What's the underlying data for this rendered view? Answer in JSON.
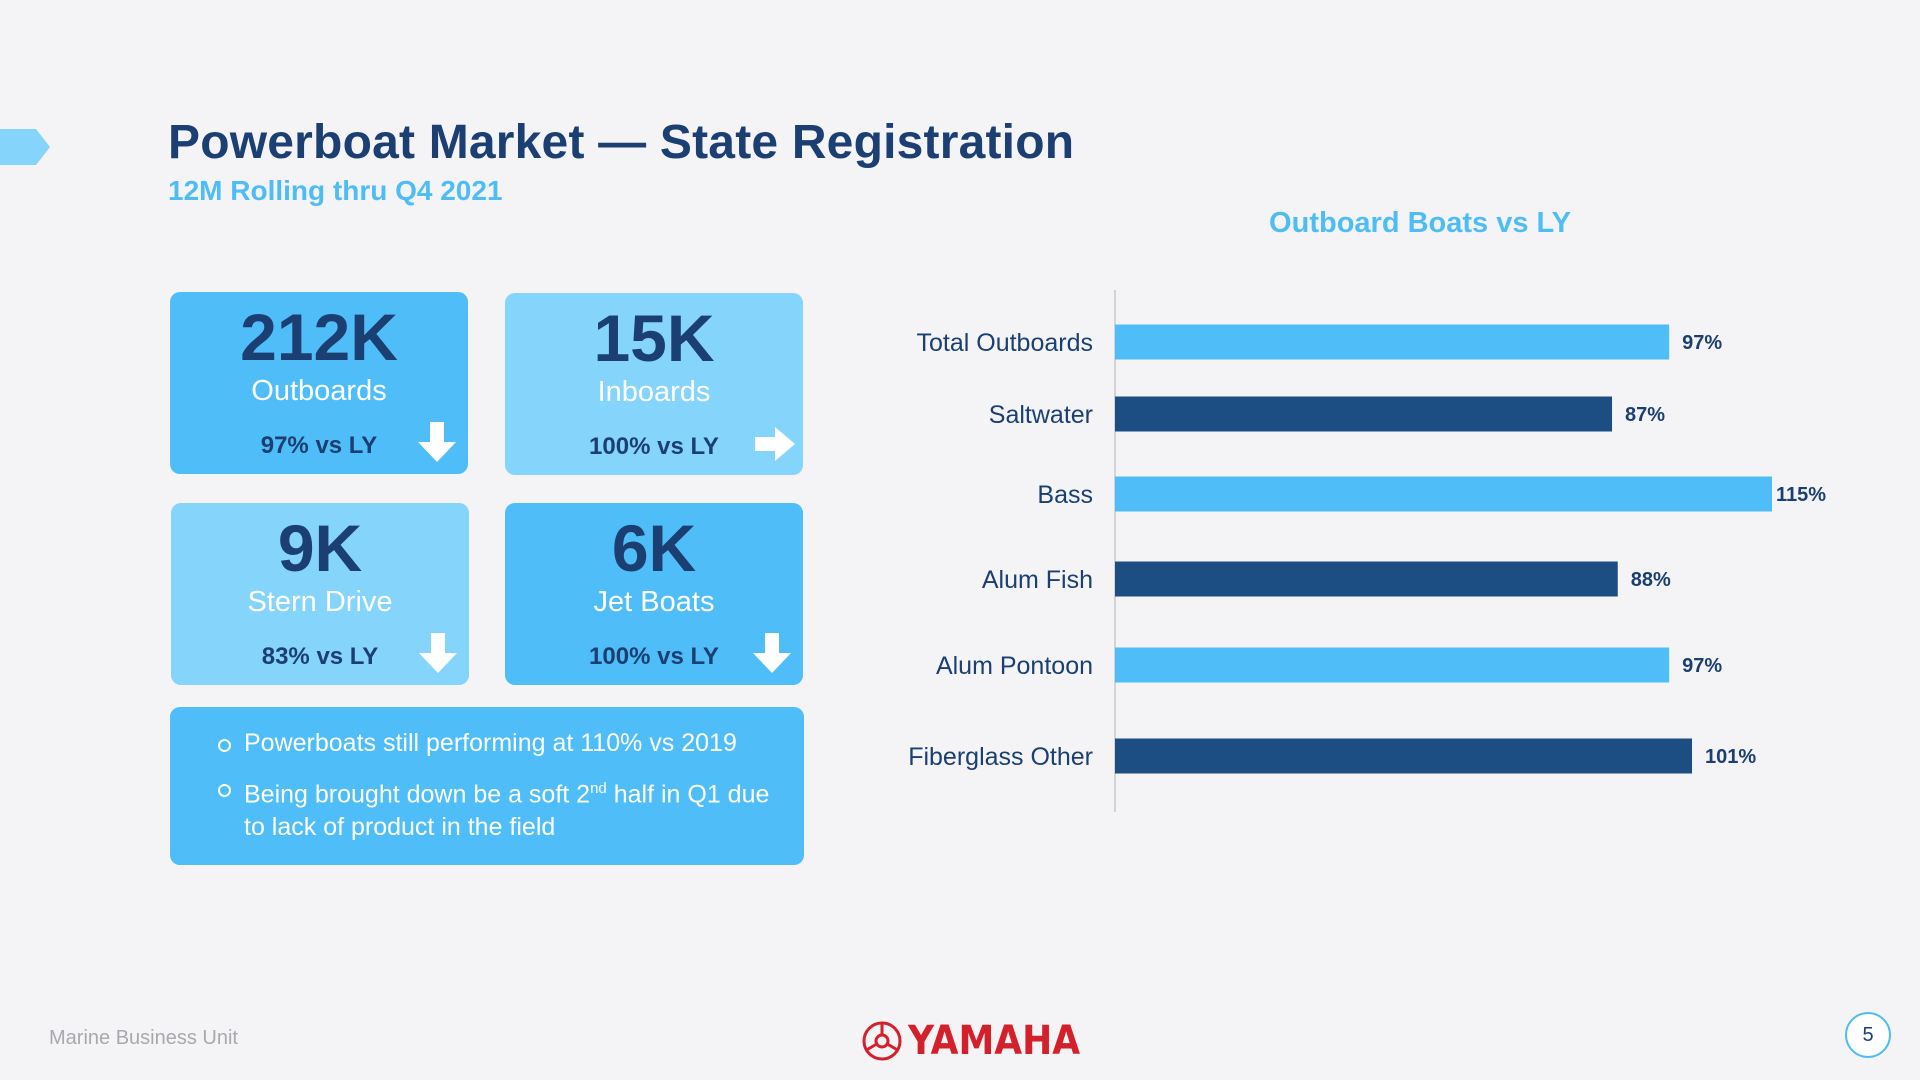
{
  "title": "Powerboat Market — State Registration",
  "subtitle": "12M Rolling thru Q4 2021",
  "colors": {
    "navy": "#1b3f72",
    "sky": "#4fbdf7",
    "light_sky": "#85d4fb",
    "bar_dark": "#1c4d83"
  },
  "cards": [
    {
      "value": "212K",
      "label": "Outboards",
      "vs": "97% vs LY",
      "trend": "down",
      "icon": "arrow-down-icon"
    },
    {
      "value": "15K",
      "label": "Inboards",
      "vs": "100% vs LY",
      "trend": "flat",
      "icon": "arrow-right-icon"
    },
    {
      "value": "9K",
      "label": "Stern Drive",
      "vs": "83% vs LY",
      "trend": "down",
      "icon": "arrow-down-icon"
    },
    {
      "value": "6K",
      "label": "Jet Boats",
      "vs": "100% vs LY",
      "trend": "down",
      "icon": "arrow-down-icon"
    }
  ],
  "notes": {
    "item1": "Powerboats still performing at 110% vs 2019",
    "item2_pre": "Being brought down be a soft 2",
    "item2_sup": "nd",
    "item2_post": " half in Q1 due to lack of product in the field"
  },
  "chart_data": {
    "type": "bar",
    "orientation": "horizontal",
    "title": "Outboard Boats vs LY",
    "categories": [
      "Total Outboards",
      "Saltwater",
      "Bass",
      "Alum Fish",
      "Alum Pontoon",
      "Fiberglass Other"
    ],
    "values": [
      97,
      87,
      115,
      88,
      97,
      101
    ],
    "value_labels": [
      "97%",
      "87%",
      "115%",
      "88%",
      "97%",
      "101%"
    ],
    "bar_colors": [
      "#4fbdf7",
      "#1c4d83",
      "#4fbdf7",
      "#1c4d83",
      "#4fbdf7",
      "#1c4d83"
    ],
    "xlim": [
      0,
      115
    ],
    "grid": false
  },
  "footer": {
    "left": "Marine Business Unit",
    "brand": "YAMAHA",
    "page": "5"
  }
}
